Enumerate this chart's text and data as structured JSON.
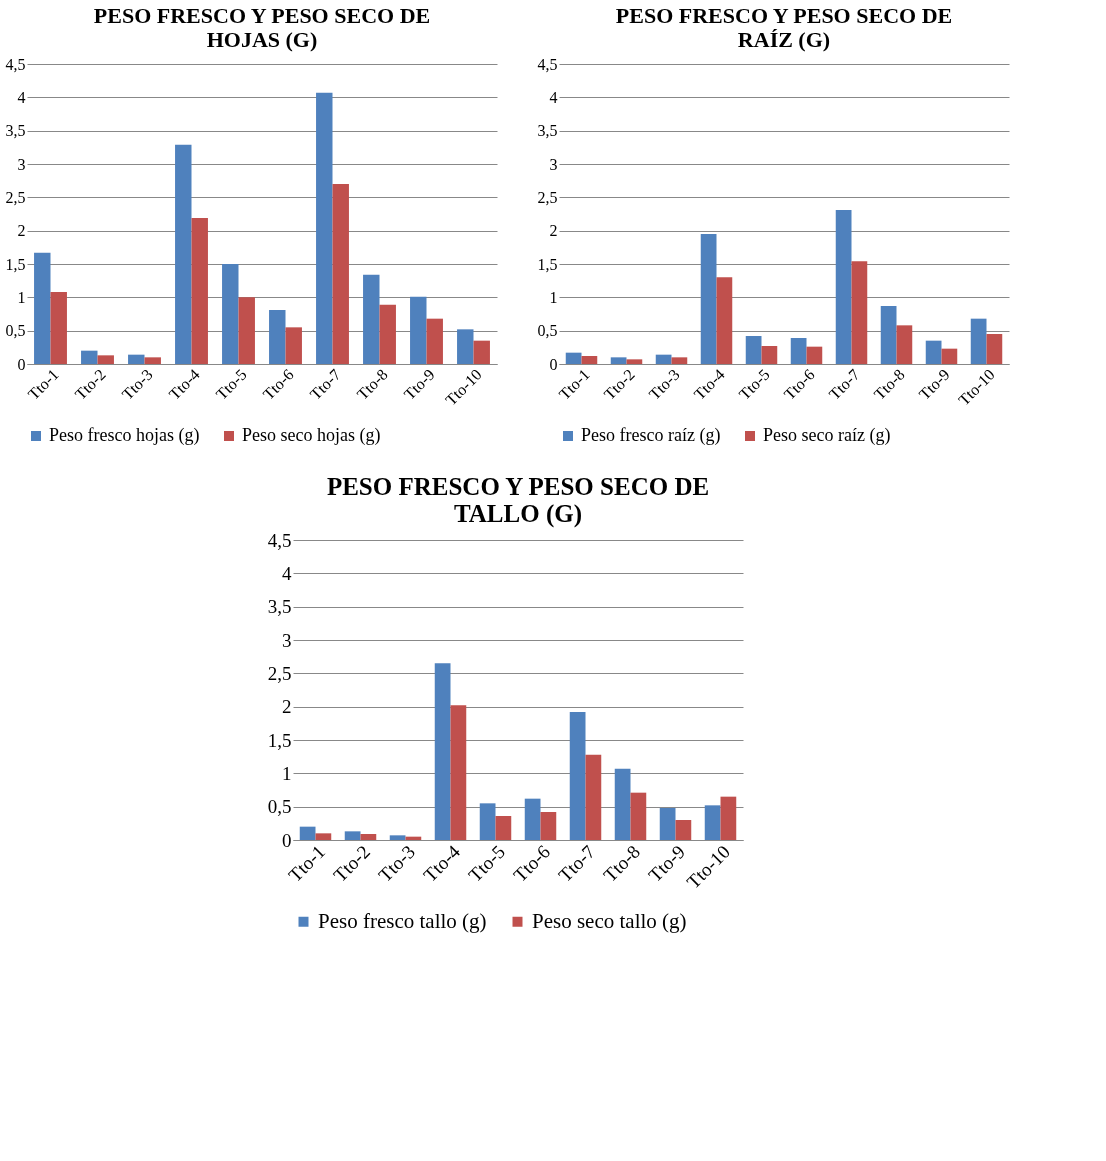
{
  "chart_data": [
    {
      "type": "bar",
      "title": "PESO FRESCO Y PESO SECO DE HOJAS (G)",
      "categories": [
        "Tto-1",
        "Tto-2",
        "Tto-3",
        "Tto-4",
        "Tto-5",
        "Tto-6",
        "Tto-7",
        "Tto-8",
        "Tto-9",
        "Tto-10"
      ],
      "series": [
        {
          "name": "Peso fresco hojas (g)",
          "color": "#4f81bd",
          "values": [
            1.67,
            0.2,
            0.14,
            3.29,
            1.5,
            0.81,
            4.07,
            1.34,
            1.01,
            0.52
          ]
        },
        {
          "name": "Peso seco hojas (g)",
          "color": "#c0504d",
          "values": [
            1.08,
            0.13,
            0.1,
            2.19,
            1.0,
            0.55,
            2.7,
            0.89,
            0.68,
            0.35
          ]
        }
      ],
      "ylim": [
        0,
        4.5
      ],
      "yticks": [
        0,
        {
          "value": 0.5,
          "label": "0,5"
        },
        1,
        {
          "value": 1.5,
          "label": "1,5"
        },
        2,
        {
          "value": 2.5,
          "label": "2,5"
        },
        3,
        {
          "value": 3.5,
          "label": "3,5"
        },
        4,
        {
          "value": 4.5,
          "label": "4,5"
        }
      ],
      "grid": "y",
      "legend": "bottom"
    },
    {
      "type": "bar",
      "title": "PESO FRESCO Y PESO SECO DE RAÍZ (G)",
      "categories": [
        "Tto-1",
        "Tto-2",
        "Tto-3",
        "Tto-4",
        "Tto-5",
        "Tto-6",
        "Tto-7",
        "Tto-8",
        "Tto-9",
        "Tto-10"
      ],
      "series": [
        {
          "name": "Peso fresco raíz (g)",
          "color": "#4f81bd",
          "values": [
            0.17,
            0.1,
            0.14,
            1.95,
            0.42,
            0.39,
            2.31,
            0.87,
            0.35,
            0.68
          ]
        },
        {
          "name": "Peso seco raíz (g)",
          "color": "#c0504d",
          "values": [
            0.12,
            0.07,
            0.1,
            1.3,
            0.27,
            0.26,
            1.54,
            0.58,
            0.23,
            0.45
          ]
        }
      ],
      "ylim": [
        0,
        4.5
      ],
      "yticks": [
        0,
        {
          "value": 0.5,
          "label": "0,5"
        },
        1,
        {
          "value": 1.5,
          "label": "1,5"
        },
        2,
        {
          "value": 2.5,
          "label": "2,5"
        },
        3,
        {
          "value": 3.5,
          "label": "3,5"
        },
        4,
        {
          "value": 4.5,
          "label": "4,5"
        }
      ],
      "grid": "y",
      "legend": "bottom"
    },
    {
      "type": "bar",
      "title": "PESO FRESCO Y PESO SECO DE TALLO (G)",
      "categories": [
        "Tto-1",
        "Tto-2",
        "Tto-3",
        "Tto-4",
        "Tto-5",
        "Tto-6",
        "Tto-7",
        "Tto-8",
        "Tto-9",
        "Tto-10"
      ],
      "series": [
        {
          "name": "Peso fresco tallo (g)",
          "color": "#4f81bd",
          "values": [
            0.2,
            0.13,
            0.07,
            2.65,
            0.55,
            0.62,
            1.92,
            1.07,
            0.48,
            0.52
          ]
        },
        {
          "name": "Peso seco tallo (g)",
          "color": "#c0504d",
          "values": [
            0.1,
            0.09,
            0.05,
            2.02,
            0.36,
            0.42,
            1.28,
            0.71,
            0.3,
            0.65
          ]
        }
      ],
      "ylim": [
        0,
        4.5
      ],
      "yticks": [
        0,
        {
          "value": 0.5,
          "label": "0,5"
        },
        1,
        {
          "value": 1.5,
          "label": "1,5"
        },
        2,
        {
          "value": 2.5,
          "label": "2,5"
        },
        3,
        {
          "value": 3.5,
          "label": "3,5"
        },
        4,
        {
          "value": 4.5,
          "label": "4,5"
        }
      ],
      "grid": "y",
      "legend": "bottom"
    }
  ]
}
